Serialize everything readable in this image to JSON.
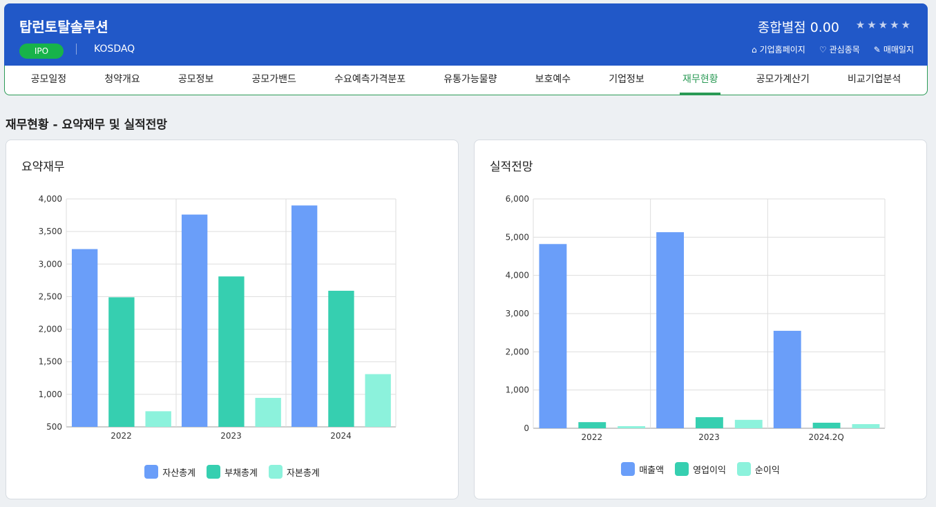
{
  "header": {
    "title": "탑런토탈솔루션",
    "badge": "IPO",
    "market": "KOSDAQ",
    "score_label": "종합별점 0.00",
    "stars": "★★★★★",
    "rating": 0,
    "links": [
      {
        "icon": "home-icon",
        "label": "기업홈페이지"
      },
      {
        "icon": "heart-icon",
        "label": "관심종목"
      },
      {
        "icon": "pencil-icon",
        "label": "매매일지"
      }
    ]
  },
  "tabs": [
    "공모일정",
    "청약개요",
    "공모정보",
    "공모가밴드",
    "수요예측가격분포",
    "유통가능물량",
    "보호예수",
    "기업정보",
    "재무현황",
    "공모가계산기",
    "비교기업분석"
  ],
  "active_tab": "재무현황",
  "section_title": "재무현황 - 요약재무 및 실적전망",
  "colors": {
    "header": "#2158c8",
    "accent": "#2a9a55",
    "s1": "#6a9ef9",
    "s2": "#36cfb0",
    "s3": "#8cf2dc"
  },
  "chart_data": [
    {
      "type": "bar",
      "title": "요약재무",
      "categories": [
        "2022",
        "2023",
        "2024"
      ],
      "ylim": [
        500,
        4000
      ],
      "yticks": [
        500,
        1000,
        1500,
        2000,
        2500,
        3000,
        3500,
        4000
      ],
      "grid": true,
      "legend": "bottom",
      "series": [
        {
          "name": "자산총계",
          "values": [
            3230,
            3760,
            3900
          ]
        },
        {
          "name": "부채총계",
          "values": [
            2490,
            2810,
            2590
          ]
        },
        {
          "name": "자본총계",
          "values": [
            740,
            945,
            1310
          ]
        }
      ]
    },
    {
      "type": "bar",
      "title": "실적전망",
      "categories": [
        "2022",
        "2023",
        "2024.2Q"
      ],
      "ylim": [
        0,
        6000
      ],
      "yticks": [
        0,
        1000,
        2000,
        3000,
        4000,
        5000,
        6000
      ],
      "grid": true,
      "legend": "bottom",
      "series": [
        {
          "name": "매출액",
          "values": [
            4820,
            5130,
            2550
          ]
        },
        {
          "name": "영업이익",
          "values": [
            160,
            290,
            145
          ]
        },
        {
          "name": "순이익",
          "values": [
            55,
            220,
            108
          ]
        }
      ]
    }
  ]
}
